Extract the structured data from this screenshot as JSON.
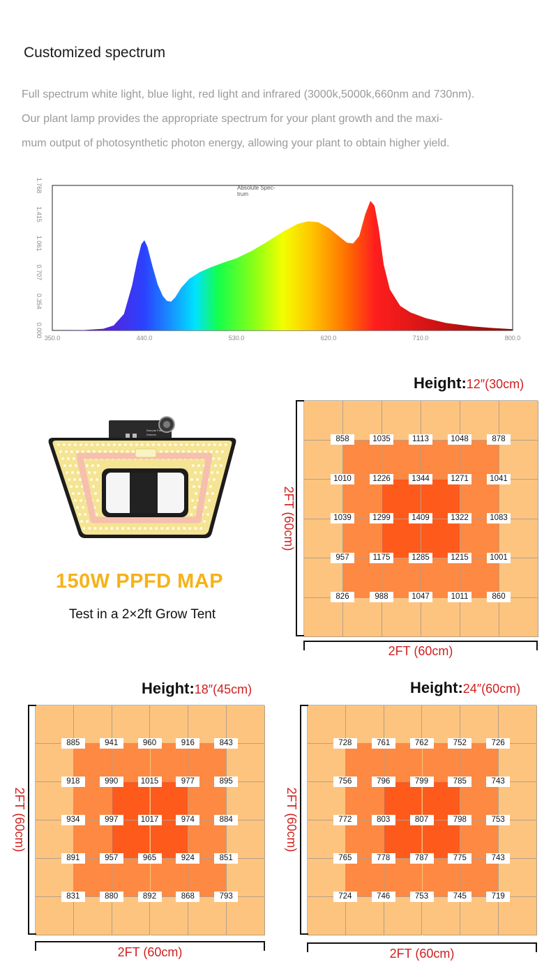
{
  "header": {
    "title": "Customized spectrum",
    "desc_lines": [
      "Full spectrum white light, blue light, red light and infrared (3000k,5000k,660nm and 730nm).",
      "Our plant lamp provides the appropriate spectrum for your plant growth and the maxi-",
      "mum output of photosynthetic photon energy, allowing your plant to obtain higher yield."
    ]
  },
  "spectrum": {
    "legend": "Absolute Spec-\ntrum",
    "x_ticks": [
      "350.0",
      "440.0",
      "530.0",
      "620.0",
      "710.0",
      "800.0"
    ],
    "y_ticks": [
      "0.000",
      "0.354",
      "0.707",
      "1.061",
      "1.415",
      "1.768"
    ],
    "xlim": [
      350,
      800
    ],
    "ylim": [
      0,
      1.768
    ],
    "points": [
      [
        350,
        0
      ],
      [
        380,
        0.003
      ],
      [
        400,
        0.02
      ],
      [
        410,
        0.06
      ],
      [
        420,
        0.2
      ],
      [
        428,
        0.55
      ],
      [
        433,
        0.85
      ],
      [
        437,
        1.05
      ],
      [
        440,
        1.1
      ],
      [
        443,
        1.02
      ],
      [
        448,
        0.78
      ],
      [
        453,
        0.56
      ],
      [
        458,
        0.42
      ],
      [
        462,
        0.36
      ],
      [
        466,
        0.35
      ],
      [
        470,
        0.4
      ],
      [
        476,
        0.52
      ],
      [
        484,
        0.63
      ],
      [
        494,
        0.71
      ],
      [
        505,
        0.77
      ],
      [
        518,
        0.83
      ],
      [
        530,
        0.88
      ],
      [
        545,
        0.97
      ],
      [
        560,
        1.08
      ],
      [
        575,
        1.2
      ],
      [
        590,
        1.3
      ],
      [
        600,
        1.33
      ],
      [
        610,
        1.32
      ],
      [
        620,
        1.25
      ],
      [
        630,
        1.15
      ],
      [
        638,
        1.07
      ],
      [
        644,
        1.06
      ],
      [
        650,
        1.15
      ],
      [
        656,
        1.42
      ],
      [
        661,
        1.58
      ],
      [
        665,
        1.52
      ],
      [
        669,
        1.25
      ],
      [
        674,
        0.8
      ],
      [
        680,
        0.5
      ],
      [
        690,
        0.3
      ],
      [
        700,
        0.22
      ],
      [
        715,
        0.15
      ],
      [
        735,
        0.09
      ],
      [
        760,
        0.05
      ],
      [
        780,
        0.03
      ],
      [
        800,
        0.015
      ]
    ]
  },
  "product": {
    "ppfd_title": "150W PPFD MAP",
    "ppfd_sub": "Test in a 2×2ft Grow Tent",
    "knob_text": [
      "Remote Port",
      "Dimmer"
    ],
    "colors": {
      "title": "#f5b21a",
      "frame": "#1c1c1c",
      "led": "#f4e493",
      "ring": "#f6bfae"
    }
  },
  "maps": [
    {
      "height_label": "Height:",
      "height_value": "12″(30cm)",
      "dim_bottom": "2FT (60cm)",
      "dim_left": "2FT (60cm)",
      "values": [
        [
          858,
          1035,
          1113,
          1048,
          878
        ],
        [
          1010,
          1226,
          1344,
          1271,
          1041
        ],
        [
          1039,
          1299,
          1409,
          1322,
          1083
        ],
        [
          957,
          1175,
          1285,
          1215,
          1001
        ],
        [
          826,
          988,
          1047,
          1011,
          860
        ]
      ]
    },
    {
      "height_label": "Height:",
      "height_value": "18″(45cm)",
      "dim_bottom": "2FT (60cm)",
      "dim_left": "2FT (60cm)",
      "values": [
        [
          885,
          941,
          960,
          916,
          843
        ],
        [
          918,
          990,
          1015,
          977,
          895
        ],
        [
          934,
          997,
          1017,
          974,
          884
        ],
        [
          891,
          957,
          965,
          924,
          851
        ],
        [
          831,
          880,
          892,
          868,
          793
        ]
      ]
    },
    {
      "height_label": "Height:",
      "height_value": "24″(60cm)",
      "dim_bottom": "2FT (60cm)",
      "dim_left": "2FT (60cm)",
      "values": [
        [
          728,
          761,
          762,
          752,
          726
        ],
        [
          756,
          796,
          799,
          785,
          743
        ],
        [
          772,
          803,
          807,
          798,
          753
        ],
        [
          765,
          778,
          787,
          775,
          743
        ],
        [
          724,
          746,
          753,
          745,
          719
        ]
      ]
    }
  ],
  "map_colors": {
    "outer": "#fdc480",
    "middle": "#fd8943",
    "center": "#fe5a1c"
  }
}
